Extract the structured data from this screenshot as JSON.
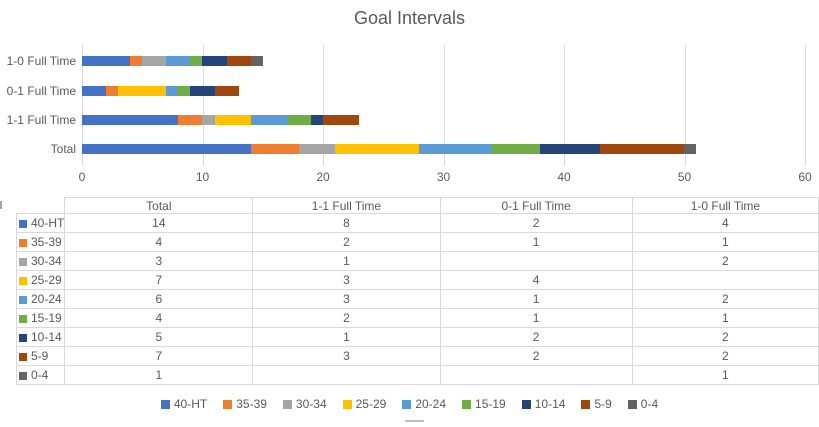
{
  "chart_data": {
    "type": "bar",
    "subtype": "horizontal-stacked",
    "title": "Goal Intervals",
    "categories": [
      "1-0 Full Time",
      "0-1 Full Time",
      "1-1 Full Time",
      "Total"
    ],
    "series": [
      {
        "name": "40-HT",
        "color": "#4472C4",
        "values": [
          4,
          2,
          8,
          14
        ]
      },
      {
        "name": "35-39",
        "color": "#ED7D31",
        "values": [
          1,
          1,
          2,
          4
        ]
      },
      {
        "name": "30-34",
        "color": "#A5A5A5",
        "values": [
          2,
          0,
          1,
          3
        ]
      },
      {
        "name": "25-29",
        "color": "#FFC000",
        "values": [
          0,
          4,
          3,
          7
        ]
      },
      {
        "name": "20-24",
        "color": "#5B9BD5",
        "values": [
          2,
          1,
          3,
          6
        ]
      },
      {
        "name": "15-19",
        "color": "#70AD47",
        "values": [
          1,
          1,
          2,
          4
        ]
      },
      {
        "name": "10-14",
        "color": "#264478",
        "values": [
          2,
          2,
          1,
          5
        ]
      },
      {
        "name": "5-9",
        "color": "#9E480E",
        "values": [
          2,
          2,
          3,
          7
        ]
      },
      {
        "name": "0-4",
        "color": "#636363",
        "values": [
          1,
          0,
          0,
          1
        ]
      }
    ],
    "xlim": [
      0,
      60
    ],
    "xticks": [
      "0",
      "10",
      "20",
      "30",
      "40",
      "50",
      "60"
    ],
    "grid": "vertical",
    "legend_position": "bottom",
    "gridline_color": "#D9D9D9",
    "text_color": "#595959"
  },
  "table": {
    "columns": [
      "Total",
      "1-1 Full Time",
      "0-1 Full Time",
      "1-0 Full Time"
    ],
    "rows": [
      {
        "label": "40-HT",
        "color": "#4472C4",
        "values": [
          "14",
          "8",
          "2",
          "4"
        ]
      },
      {
        "label": "35-39",
        "color": "#ED7D31",
        "values": [
          "4",
          "2",
          "1",
          "1"
        ]
      },
      {
        "label": "30-34",
        "color": "#A5A5A5",
        "values": [
          "3",
          "1",
          "",
          "2"
        ]
      },
      {
        "label": "25-29",
        "color": "#FFC000",
        "values": [
          "7",
          "3",
          "4",
          ""
        ]
      },
      {
        "label": "20-24",
        "color": "#5B9BD5",
        "values": [
          "6",
          "3",
          "1",
          "2"
        ]
      },
      {
        "label": "15-19",
        "color": "#70AD47",
        "values": [
          "4",
          "2",
          "1",
          "1"
        ]
      },
      {
        "label": "10-14",
        "color": "#264478",
        "values": [
          "5",
          "1",
          "2",
          "2"
        ]
      },
      {
        "label": "5-9",
        "color": "#9E480E",
        "values": [
          "7",
          "3",
          "2",
          "2"
        ]
      },
      {
        "label": "0-4",
        "color": "#636363",
        "values": [
          "1",
          "",
          "",
          "1"
        ]
      }
    ]
  },
  "legend": {
    "items": [
      {
        "label": "40-HT",
        "color": "#4472C4"
      },
      {
        "label": "35-39",
        "color": "#ED7D31"
      },
      {
        "label": "30-34",
        "color": "#A5A5A5"
      },
      {
        "label": "25-29",
        "color": "#FFC000"
      },
      {
        "label": "20-24",
        "color": "#5B9BD5"
      },
      {
        "label": "15-19",
        "color": "#70AD47"
      },
      {
        "label": "10-14",
        "color": "#264478"
      },
      {
        "label": "5-9",
        "color": "#9E480E"
      },
      {
        "label": "0-4",
        "color": "#636363"
      }
    ]
  }
}
